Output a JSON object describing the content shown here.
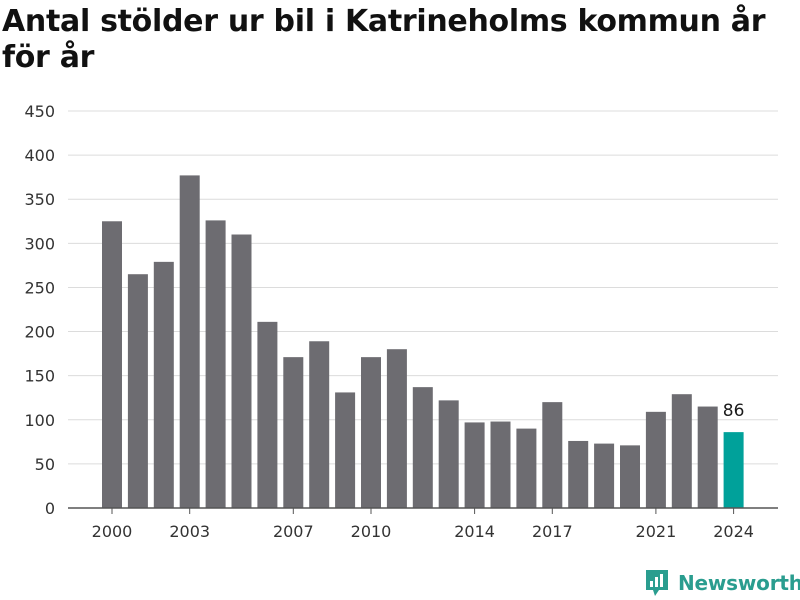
{
  "chart_data": {
    "type": "bar",
    "title": "Antal stölder ur bil i Katrineholms kommun år för år",
    "x": [
      2000,
      2001,
      2002,
      2003,
      2004,
      2005,
      2006,
      2007,
      2008,
      2009,
      2010,
      2011,
      2012,
      2013,
      2014,
      2015,
      2016,
      2017,
      2018,
      2019,
      2020,
      2021,
      2022,
      2023,
      2024
    ],
    "values": [
      325,
      265,
      279,
      377,
      326,
      310,
      211,
      171,
      189,
      131,
      171,
      180,
      137,
      122,
      97,
      98,
      90,
      120,
      76,
      73,
      71,
      109,
      129,
      115,
      86
    ],
    "x_tick_labels": [
      "2000",
      "2003",
      "2007",
      "2010",
      "2014",
      "2017",
      "2021",
      "2024"
    ],
    "y_ticks": [
      0,
      50,
      100,
      150,
      200,
      250,
      300,
      350,
      400,
      450
    ],
    "ylim": [
      0,
      450
    ],
    "xlabel": "",
    "ylabel": "",
    "grid": true,
    "bar_color": "#6d6c71",
    "highlight_color": "#00a19a",
    "highlight_year": 2024,
    "data_labels": [
      {
        "x": 2024,
        "text": "86"
      }
    ]
  },
  "brand": {
    "name": "Newsworthy",
    "icon": "newsworthy-logo-icon",
    "color": "#2a9d8f"
  }
}
